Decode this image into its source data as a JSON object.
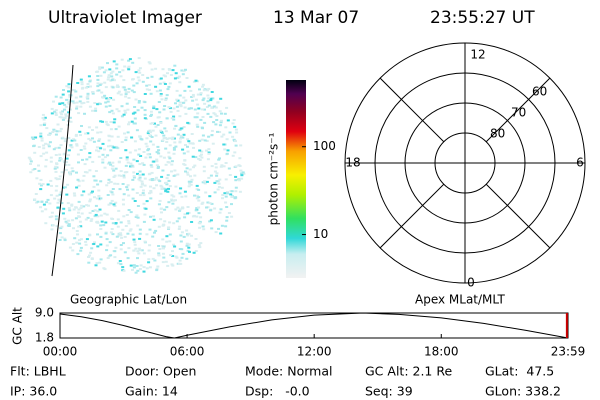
{
  "header": {
    "instrument": "Ultraviolet Imager",
    "date": "13 Mar 07",
    "time": "23:55:27 UT"
  },
  "colorbar": {
    "label": "photon cm⁻²s⁻¹",
    "clim": [
      3.2,
      575
    ],
    "ticks": [
      10,
      100
    ],
    "log": true
  },
  "polar": {
    "mlt_labels": [
      "12",
      "18",
      "6",
      "0"
    ],
    "lat_labels": [
      60,
      70,
      80
    ]
  },
  "chart_data": {
    "type": "line",
    "y_label": "GC Alt",
    "left_label": "Geographic Lat/Lon",
    "right_label": "Apex MLat/MLT",
    "x": [
      0,
      1,
      2,
      3,
      4,
      5,
      5.4,
      6,
      8,
      10,
      12,
      14.3,
      16,
      18,
      20,
      22,
      23.983
    ],
    "series": [
      {
        "color": "#000000",
        "values": [
          8.7,
          7.9,
          6.8,
          5.4,
          3.8,
          2.2,
          1.8,
          2.6,
          5.0,
          7.0,
          8.4,
          9.0,
          8.6,
          7.6,
          6.0,
          4.0,
          1.8
        ]
      }
    ],
    "xlim": [
      0,
      23.983
    ],
    "ylim": [
      1.8,
      9.0
    ],
    "xticks": [
      {
        "value": 0,
        "label": "00:00"
      },
      {
        "value": 6,
        "label": "06:00"
      },
      {
        "value": 12,
        "label": "12:00"
      },
      {
        "value": 18,
        "label": "18:00"
      },
      {
        "value": 23.983,
        "label": "23:59"
      }
    ],
    "yticks": [
      {
        "value": 9.0,
        "label": "9.0"
      },
      {
        "value": 1.8,
        "label": "1.8"
      }
    ],
    "marker_x": 23.93,
    "marker_color": "#cc0000"
  },
  "footer": {
    "rows": [
      [
        "Flt: LBHL",
        "Door: Open",
        "Mode: Normal",
        "GC Alt: 2.1 Re",
        "GLat:  47.5"
      ],
      [
        "IP: 36.0",
        "Gain: 14",
        "Dsp:   -0.0",
        "Seq: 39",
        "GLon: 338.2"
      ]
    ]
  }
}
